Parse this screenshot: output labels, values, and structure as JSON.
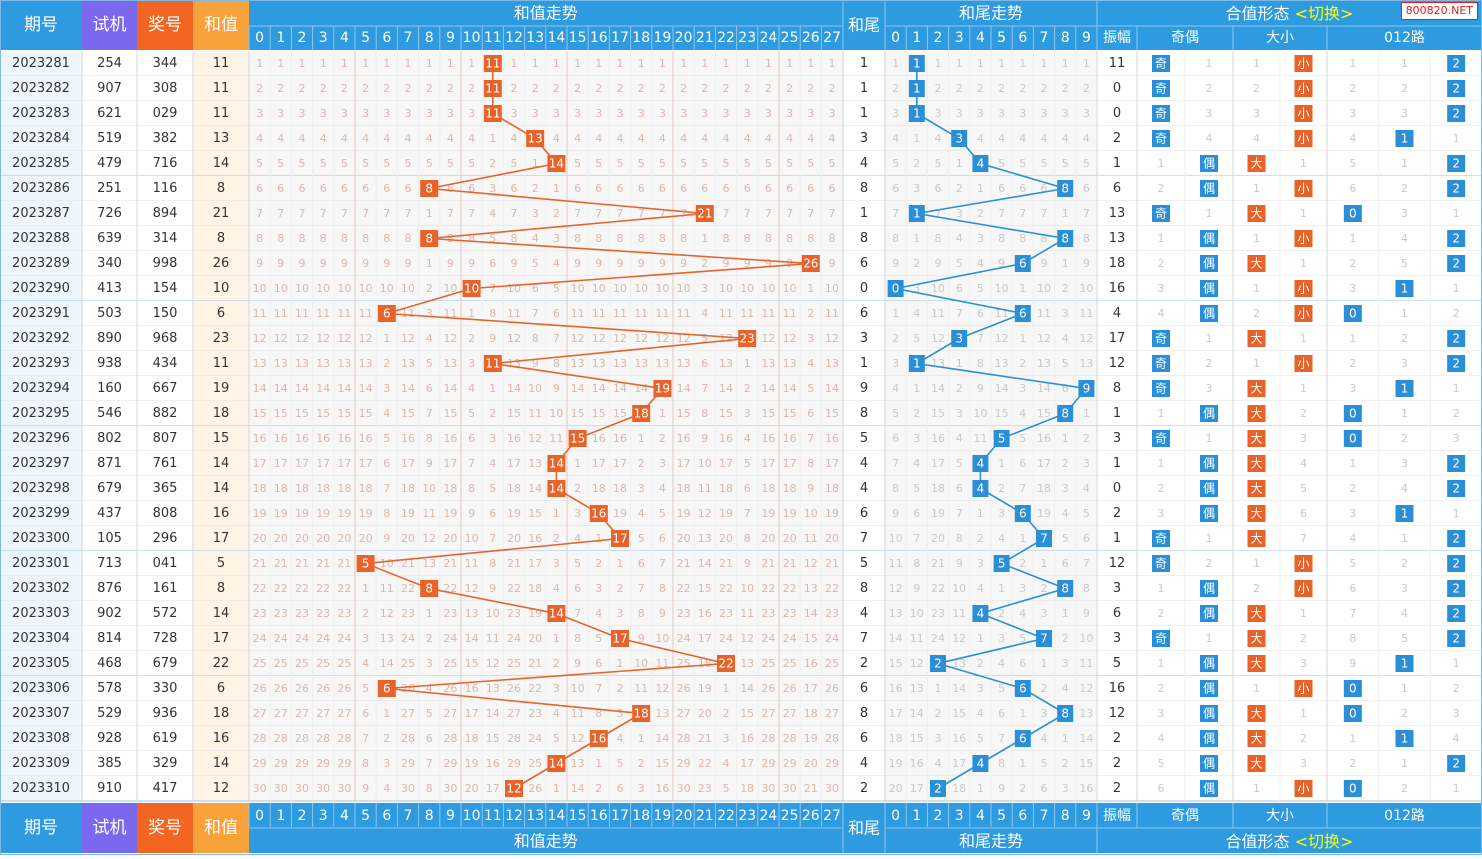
{
  "site_badge": "800820.NET",
  "headers": {
    "issue": "期号",
    "trial": "试机",
    "prize": "奖号",
    "sum": "和值",
    "sum_trend": "和值走势",
    "tail": "和尾",
    "tail_trend": "和尾走势",
    "form": "合值形态",
    "switch": "<切换>",
    "amplitude": "振幅",
    "odd_even": "奇偶",
    "big_small": "大小",
    "route012": "012路"
  },
  "labels": {
    "odd": "奇",
    "even": "偶",
    "big": "大",
    "small": "小"
  },
  "colors": {
    "header_blue": "#2e9ae0",
    "header_purple": "#7b68ee",
    "header_red": "#f26522",
    "header_orange": "#f9a13a",
    "sum_ball": "#e8632a",
    "tail_ball": "#2b8fd8",
    "big_small_ball": "#e8632a",
    "odd_even_ball": "#2b8fd8",
    "route_ball": "#2b8fd8",
    "switch_text": "#ffff00"
  },
  "sum_columns": [
    "0",
    "1",
    "2",
    "3",
    "4",
    "5",
    "6",
    "7",
    "8",
    "9",
    "10",
    "11",
    "12",
    "13",
    "14",
    "15",
    "16",
    "17",
    "18",
    "19",
    "20",
    "21",
    "22",
    "23",
    "24",
    "25",
    "26",
    "27"
  ],
  "tail_columns": [
    "0",
    "1",
    "2",
    "3",
    "4",
    "5",
    "6",
    "7",
    "8",
    "9"
  ],
  "route_columns": [
    "0",
    "1",
    "2"
  ],
  "rows": [
    {
      "issue": "2023281",
      "trial": "254",
      "prize": "344",
      "sum": 11,
      "tail": 1,
      "amp": "11",
      "oe": "奇",
      "bs": "小",
      "route": 2
    },
    {
      "issue": "2023282",
      "trial": "907",
      "prize": "308",
      "sum": 11,
      "tail": 1,
      "amp": "0",
      "oe": "奇",
      "bs": "小",
      "route": 2
    },
    {
      "issue": "2023283",
      "trial": "621",
      "prize": "029",
      "sum": 11,
      "tail": 1,
      "amp": "0",
      "oe": "奇",
      "bs": "小",
      "route": 2
    },
    {
      "issue": "2023284",
      "trial": "519",
      "prize": "382",
      "sum": 13,
      "tail": 3,
      "amp": "2",
      "oe": "奇",
      "bs": "小",
      "route": 1
    },
    {
      "issue": "2023285",
      "trial": "479",
      "prize": "716",
      "sum": 14,
      "tail": 4,
      "amp": "1",
      "oe": "偶",
      "bs": "大",
      "route": 2
    },
    {
      "issue": "2023286",
      "trial": "251",
      "prize": "116",
      "sum": 8,
      "tail": 8,
      "amp": "6",
      "oe": "偶",
      "bs": "小",
      "route": 2
    },
    {
      "issue": "2023287",
      "trial": "726",
      "prize": "894",
      "sum": 21,
      "tail": 1,
      "amp": "13",
      "oe": "奇",
      "bs": "大",
      "route": 0
    },
    {
      "issue": "2023288",
      "trial": "639",
      "prize": "314",
      "sum": 8,
      "tail": 8,
      "amp": "13",
      "oe": "偶",
      "bs": "小",
      "route": 2
    },
    {
      "issue": "2023289",
      "trial": "340",
      "prize": "998",
      "sum": 26,
      "tail": 6,
      "amp": "18",
      "oe": "偶",
      "bs": "大",
      "route": 2
    },
    {
      "issue": "2023290",
      "trial": "413",
      "prize": "154",
      "sum": 10,
      "tail": 0,
      "amp": "16",
      "oe": "偶",
      "bs": "小",
      "route": 1
    },
    {
      "issue": "2023291",
      "trial": "503",
      "prize": "150",
      "sum": 6,
      "tail": 6,
      "amp": "4",
      "oe": "偶",
      "bs": "小",
      "route": 0
    },
    {
      "issue": "2023292",
      "trial": "890",
      "prize": "968",
      "sum": 23,
      "tail": 3,
      "amp": "17",
      "oe": "奇",
      "bs": "大",
      "route": 2
    },
    {
      "issue": "2023293",
      "trial": "938",
      "prize": "434",
      "sum": 11,
      "tail": 1,
      "amp": "12",
      "oe": "奇",
      "bs": "小",
      "route": 2
    },
    {
      "issue": "2023294",
      "trial": "160",
      "prize": "667",
      "sum": 19,
      "tail": 9,
      "amp": "8",
      "oe": "奇",
      "bs": "大",
      "route": 1
    },
    {
      "issue": "2023295",
      "trial": "546",
      "prize": "882",
      "sum": 18,
      "tail": 8,
      "amp": "1",
      "oe": "偶",
      "bs": "大",
      "route": 0
    },
    {
      "issue": "2023296",
      "trial": "802",
      "prize": "807",
      "sum": 15,
      "tail": 5,
      "amp": "3",
      "oe": "奇",
      "bs": "大",
      "route": 0
    },
    {
      "issue": "2023297",
      "trial": "871",
      "prize": "761",
      "sum": 14,
      "tail": 4,
      "amp": "1",
      "oe": "偶",
      "bs": "大",
      "route": 2
    },
    {
      "issue": "2023298",
      "trial": "679",
      "prize": "365",
      "sum": 14,
      "tail": 4,
      "amp": "0",
      "oe": "偶",
      "bs": "大",
      "route": 2
    },
    {
      "issue": "2023299",
      "trial": "437",
      "prize": "808",
      "sum": 16,
      "tail": 6,
      "amp": "2",
      "oe": "偶",
      "bs": "大",
      "route": 1
    },
    {
      "issue": "2023300",
      "trial": "105",
      "prize": "296",
      "sum": 17,
      "tail": 7,
      "amp": "1",
      "oe": "奇",
      "bs": "大",
      "route": 2
    },
    {
      "issue": "2023301",
      "trial": "713",
      "prize": "041",
      "sum": 5,
      "tail": 5,
      "amp": "12",
      "oe": "奇",
      "bs": "小",
      "route": 2
    },
    {
      "issue": "2023302",
      "trial": "876",
      "prize": "161",
      "sum": 8,
      "tail": 8,
      "amp": "3",
      "oe": "偶",
      "bs": "小",
      "route": 2
    },
    {
      "issue": "2023303",
      "trial": "902",
      "prize": "572",
      "sum": 14,
      "tail": 4,
      "amp": "6",
      "oe": "偶",
      "bs": "大",
      "route": 2
    },
    {
      "issue": "2023304",
      "trial": "814",
      "prize": "728",
      "sum": 17,
      "tail": 7,
      "amp": "3",
      "oe": "奇",
      "bs": "大",
      "route": 2
    },
    {
      "issue": "2023305",
      "trial": "468",
      "prize": "679",
      "sum": 22,
      "tail": 2,
      "amp": "5",
      "oe": "偶",
      "bs": "大",
      "route": 1
    },
    {
      "issue": "2023306",
      "trial": "578",
      "prize": "330",
      "sum": 6,
      "tail": 6,
      "amp": "16",
      "oe": "偶",
      "bs": "小",
      "route": 0
    },
    {
      "issue": "2023307",
      "trial": "529",
      "prize": "936",
      "sum": 18,
      "tail": 8,
      "amp": "12",
      "oe": "偶",
      "bs": "大",
      "route": 0
    },
    {
      "issue": "2023308",
      "trial": "928",
      "prize": "619",
      "sum": 16,
      "tail": 6,
      "amp": "2",
      "oe": "偶",
      "bs": "大",
      "route": 1
    },
    {
      "issue": "2023309",
      "trial": "385",
      "prize": "329",
      "sum": 14,
      "tail": 4,
      "amp": "2",
      "oe": "偶",
      "bs": "大",
      "route": 2
    },
    {
      "issue": "2023310",
      "trial": "910",
      "prize": "417",
      "sum": 12,
      "tail": 2,
      "amp": "2",
      "oe": "偶",
      "bs": "小",
      "route": 0
    }
  ]
}
